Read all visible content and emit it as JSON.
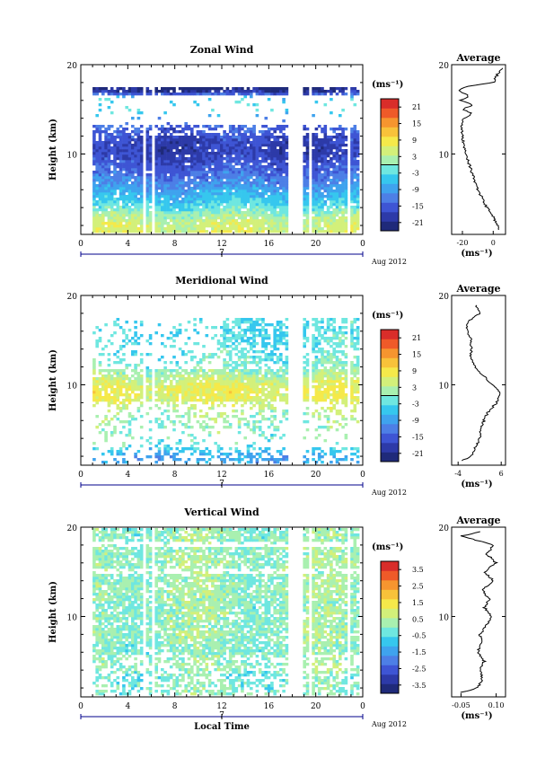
{
  "chart_data": [
    {
      "type": "heatmap",
      "title": "Zonal Wind",
      "ylabel": "Height (km)",
      "xlabel": "",
      "ylim": [
        1,
        20
      ],
      "xlim": [
        0,
        24
      ],
      "x_ticks": [
        "0",
        "4",
        "8",
        "12",
        "16",
        "20",
        "0"
      ],
      "y_ticks": [
        "20",
        "10"
      ],
      "date_ticks": [
        "7"
      ],
      "date_label": "Aug 2012",
      "colorbar": {
        "unit": "(ms⁻¹)",
        "ticks": [
          "21",
          "15",
          "9",
          "3",
          "-3",
          "-9",
          "-15",
          "-21"
        ],
        "range": [
          -24,
          24
        ]
      },
      "field": {
        "levels_km": [
          2,
          3,
          4,
          5,
          6,
          7,
          8,
          9,
          10,
          11,
          12,
          13,
          14,
          15,
          16,
          17
        ],
        "values_ms": [
          5,
          2,
          -3,
          -6,
          -9,
          -12,
          -14,
          -16,
          -18,
          -18,
          -16,
          -14,
          -8,
          -3,
          -4,
          -22
        ]
      },
      "average_profile": {
        "title": "Average",
        "xlabel": "(ms⁻¹)",
        "x_ticks": [
          "-20",
          "0"
        ],
        "xlim": [
          -27,
          8
        ],
        "height_km": [
          1.5,
          2,
          3,
          4,
          5,
          6,
          7,
          8,
          9,
          10,
          11,
          12,
          13,
          14,
          14.5,
          15,
          15.5,
          16,
          16.5,
          17,
          17.5,
          18,
          19,
          19.7
        ],
        "speed_ms": [
          4,
          3,
          0,
          -4,
          -7,
          -10,
          -12,
          -14,
          -16,
          -18,
          -19,
          -20,
          -21,
          -19,
          -14,
          -20,
          -13,
          -21,
          -16,
          -22,
          -19,
          0,
          3,
          6
        ]
      }
    },
    {
      "type": "heatmap",
      "title": "Meridional Wind",
      "ylabel": "Height (km)",
      "xlabel": "",
      "ylim": [
        1,
        20
      ],
      "xlim": [
        0,
        24
      ],
      "x_ticks": [
        "0",
        "4",
        "8",
        "12",
        "16",
        "20",
        "0"
      ],
      "y_ticks": [
        "20",
        "10"
      ],
      "date_ticks": [
        "7"
      ],
      "date_label": "Aug 2012",
      "colorbar": {
        "unit": "(ms⁻¹)",
        "ticks": [
          "21",
          "15",
          "9",
          "3",
          "-3",
          "-9",
          "-15",
          "-21"
        ],
        "range": [
          -24,
          24
        ]
      },
      "field": {
        "levels_km": [
          2,
          3,
          4,
          5,
          6,
          7,
          8,
          9,
          10,
          11,
          12,
          13,
          14,
          15,
          16,
          17
        ],
        "values_ms": [
          -8,
          -2,
          0,
          0,
          1,
          3,
          6,
          7,
          6,
          2,
          -1,
          -2,
          -3,
          -3,
          -4,
          -3
        ]
      },
      "average_profile": {
        "title": "Average",
        "xlabel": "(ms⁻¹)",
        "x_ticks": [
          "-4",
          "6"
        ],
        "xlim": [
          -5.5,
          7
        ],
        "height_km": [
          1.5,
          2,
          3,
          4,
          5,
          6,
          7,
          8,
          9,
          10,
          11,
          12,
          13,
          14,
          15,
          16,
          17,
          18,
          19
        ],
        "speed_ms": [
          -3,
          -1,
          0,
          1,
          1,
          2,
          3,
          5,
          6,
          4,
          2,
          0,
          -1,
          -1,
          -1,
          -2,
          -2,
          1,
          0
        ]
      }
    },
    {
      "type": "heatmap",
      "title": "Vertical Wind",
      "ylabel": "Height (km)",
      "xlabel": "Local Time",
      "ylim": [
        1,
        20
      ],
      "xlim": [
        0,
        24
      ],
      "x_ticks": [
        "0",
        "4",
        "8",
        "12",
        "16",
        "20",
        "0"
      ],
      "y_ticks": [
        "20",
        "10"
      ],
      "date_ticks": [
        "7"
      ],
      "date_label": "Aug 2012",
      "colorbar": {
        "unit": "(ms⁻¹)",
        "ticks": [
          "3.5",
          "2.5",
          "1.5",
          "0.5",
          "-0.5",
          "-1.5",
          "-2.5",
          "-3.5"
        ],
        "range": [
          -4,
          4
        ]
      },
      "field": {
        "levels_km": [
          2,
          3,
          4,
          5,
          6,
          7,
          8,
          9,
          10,
          11,
          12,
          13,
          14,
          15,
          16,
          17,
          18,
          19
        ],
        "values_ms": [
          0,
          -0.2,
          0.1,
          0.2,
          0,
          0.1,
          0.2,
          0.1,
          0.2,
          0.1,
          0.2,
          0.3,
          0.1,
          0.2,
          0.3,
          0.1,
          0.2,
          0.1
        ]
      },
      "average_profile": {
        "title": "Average",
        "xlabel": "(ms⁻¹)",
        "x_ticks": [
          "-0.05",
          "0.10"
        ],
        "xlim": [
          -0.09,
          0.14
        ],
        "height_km": [
          1.5,
          2,
          3,
          4,
          5,
          6,
          7,
          8,
          9,
          10,
          11,
          12,
          13,
          14,
          15,
          16,
          17,
          18,
          18.5,
          19,
          19.5
        ],
        "speed_ms": [
          -0.05,
          0.02,
          0.04,
          0.03,
          0.05,
          0.02,
          0.04,
          0.03,
          0.06,
          0.08,
          0.05,
          0.07,
          0.04,
          0.09,
          0.05,
          0.1,
          0.06,
          0.09,
          0.02,
          -0.05,
          0.03
        ]
      }
    }
  ]
}
